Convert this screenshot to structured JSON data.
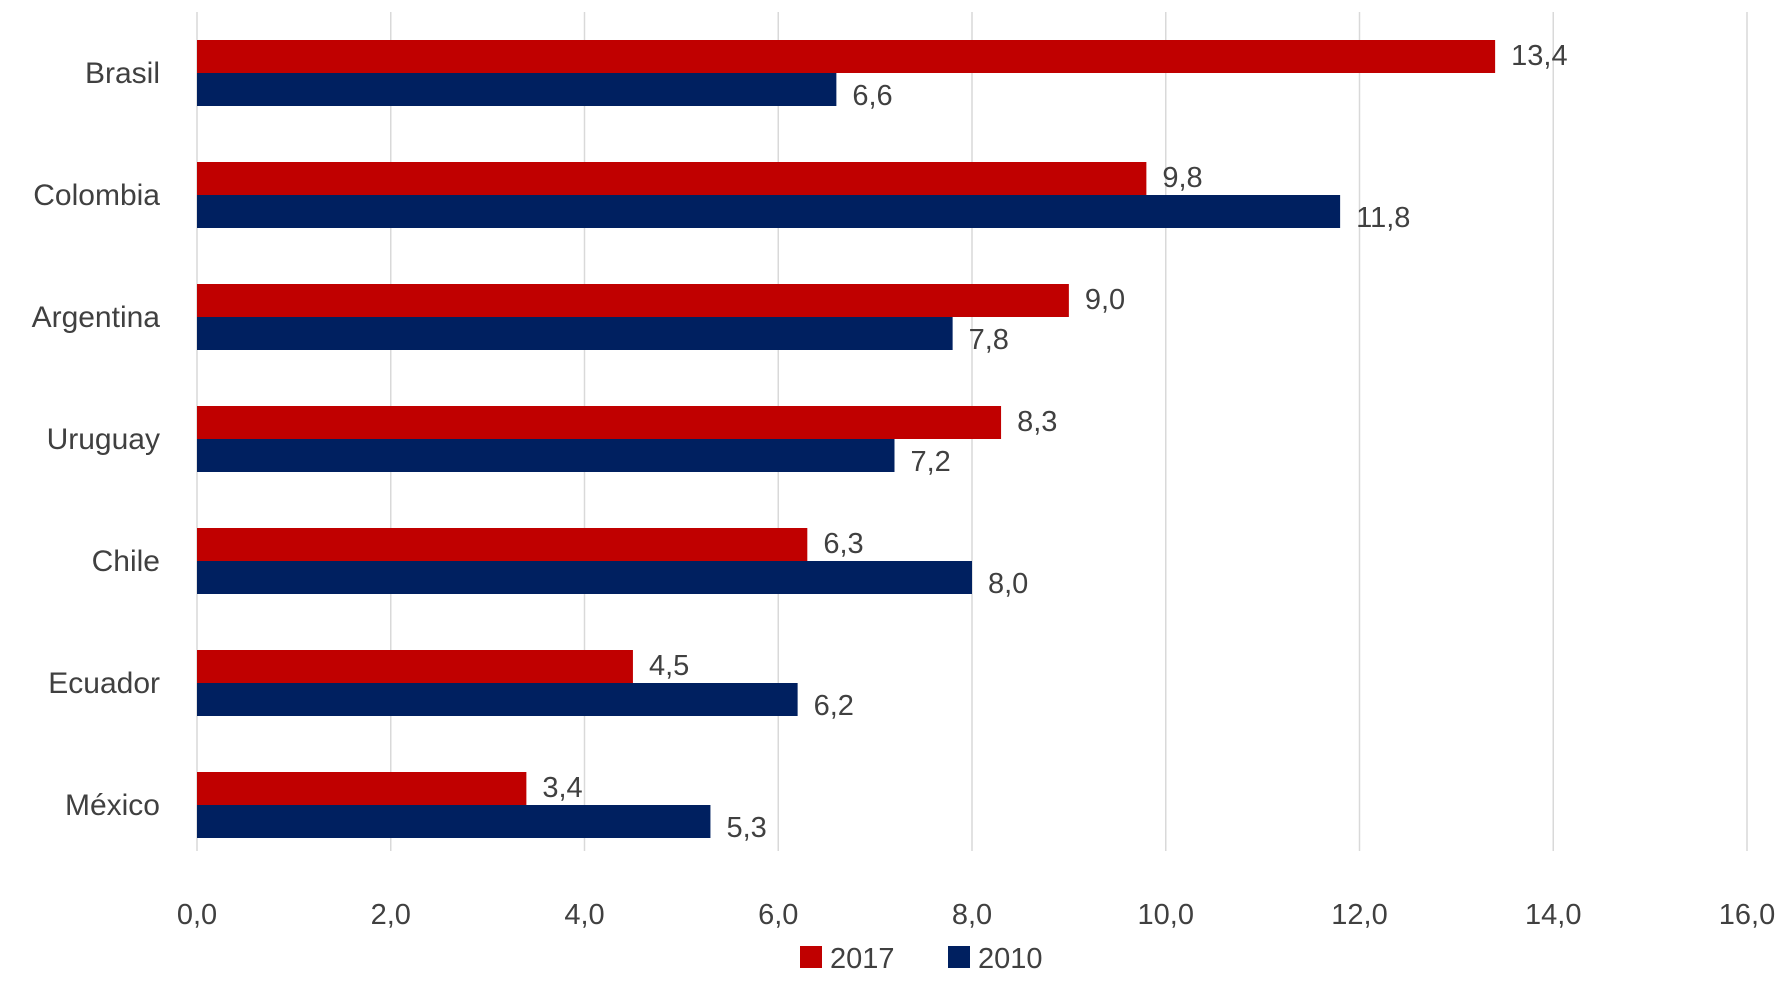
{
  "chart_data": {
    "type": "bar",
    "orientation": "horizontal",
    "categories": [
      "Brasil",
      "Colombia",
      "Argentina",
      "Uruguay",
      "Chile",
      "Ecuador",
      "México"
    ],
    "series": [
      {
        "name": "2017",
        "color": "#C00000",
        "values": [
          13.4,
          9.8,
          9.0,
          8.3,
          6.3,
          4.5,
          3.4
        ],
        "labels": [
          "13,4",
          "9,8",
          "9,0",
          "8,3",
          "6,3",
          "4,5",
          "3,4"
        ]
      },
      {
        "name": "2010",
        "color": "#002060",
        "values": [
          6.6,
          11.8,
          7.8,
          7.2,
          8.0,
          6.2,
          5.3
        ],
        "labels": [
          "6,6",
          "11,8",
          "7,8",
          "7,2",
          "8,0",
          "6,2",
          "5,3"
        ]
      }
    ],
    "xlim": [
      0,
      16
    ],
    "x_ticks": [
      "0,0",
      "2,0",
      "4,0",
      "6,0",
      "8,0",
      "10,0",
      "12,0",
      "14,0",
      "16,0"
    ],
    "grid": "vertical",
    "legend": "bottom"
  }
}
